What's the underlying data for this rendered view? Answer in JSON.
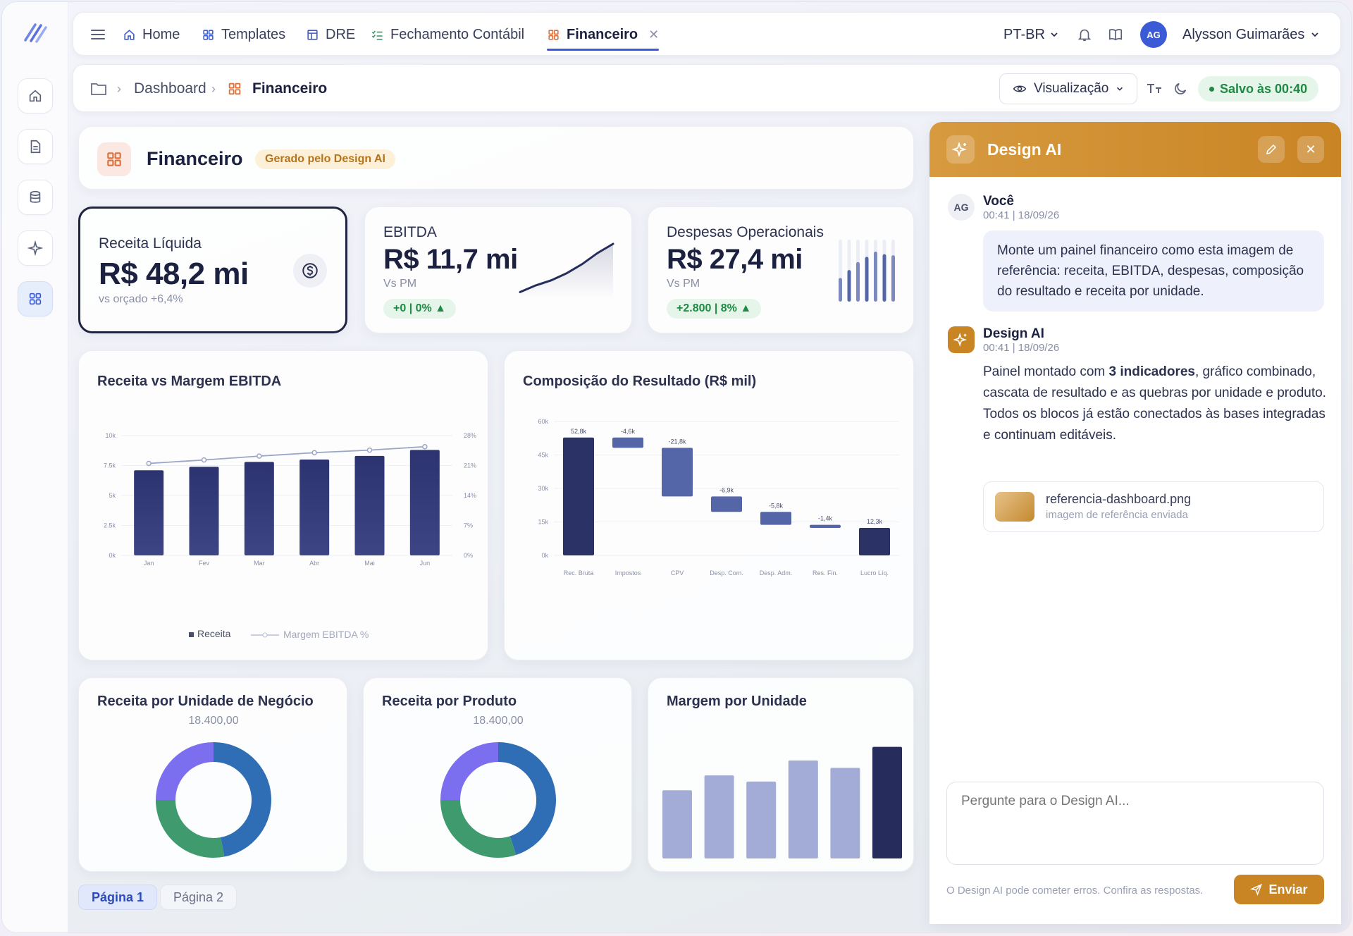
{
  "nav": {
    "tabs": [
      {
        "label": "Home",
        "icon": "home-icon"
      },
      {
        "label": "Templates",
        "icon": "grid-icon"
      },
      {
        "label": "DRE",
        "icon": "table-icon"
      },
      {
        "label": "Fechamento Contábil",
        "icon": "checklist-icon"
      },
      {
        "label": "Financeiro",
        "icon": "grid-icon",
        "active": true
      }
    ],
    "language": "PT-BR",
    "user_initials": "AG",
    "user_name": "Alysson Guimarães"
  },
  "breadcrumb": {
    "items": [
      "Dashboard",
      "Financeiro"
    ],
    "view_label": "Visualização",
    "saved_label": "Salvo às 00:40"
  },
  "page": {
    "title": "Financeiro",
    "badge": "Gerado pelo Design AI"
  },
  "kpis": [
    {
      "title": "Receita Líquida",
      "value": "R$ 48,2 mi",
      "sub": "vs orçado +6,4%"
    },
    {
      "title": "EBITDA",
      "value": "R$ 11,7 mi",
      "sub": "Vs PM",
      "chip": "+0 | 0% ▲",
      "spark": [
        0.05,
        0.18,
        0.28,
        0.42,
        0.6,
        0.82,
        1.0
      ]
    },
    {
      "title": "Despesas Operacionais",
      "value": "R$ 27,4 mi",
      "sub": "Vs PM",
      "chip": "+2.800 | 8% ▲",
      "bars": [
        0.45,
        0.6,
        0.75,
        0.85,
        0.95,
        0.9,
        0.88
      ]
    }
  ],
  "chart_data": [
    {
      "type": "bar",
      "title": "Receita vs Margem EBITDA",
      "categories": [
        "Jan",
        "Fev",
        "Mar",
        "Abr",
        "Mai",
        "Jun"
      ],
      "y_ticks": [
        "0k",
        "2.5k",
        "5k",
        "7.5k",
        "10k"
      ],
      "y2_ticks": [
        "0%",
        "7%",
        "14%",
        "21%",
        "28%"
      ],
      "ylim": [
        0,
        10000
      ],
      "y2lim": [
        0,
        28
      ],
      "series": [
        {
          "name": "Receita",
          "type": "bar",
          "values": [
            7100,
            7400,
            7800,
            8000,
            8300,
            8800
          ]
        },
        {
          "name": "Margem EBITDA %",
          "type": "line",
          "values": [
            21.5,
            22.3,
            23.2,
            24.0,
            24.6,
            25.4
          ]
        }
      ],
      "legend": "bottom"
    },
    {
      "type": "waterfall",
      "title": "Composição do Resultado (R$ mil)",
      "categories": [
        "Rec. Bruta",
        "Impostos",
        "CPV",
        "Desp. Com.",
        "Desp. Adm.",
        "Res. Fin.",
        "Lucro Líq."
      ],
      "labels": [
        "52,8k",
        "-4,6k",
        "-21,8k",
        "-6,9k",
        "-5,8k",
        "-1,4k",
        "12,3k"
      ],
      "values": [
        52.8,
        -4.6,
        -21.8,
        -6.9,
        -5.8,
        -1.4,
        12.3
      ],
      "y_ticks": [
        "0k",
        "15k",
        "30k",
        "45k",
        "60k"
      ],
      "ylim": [
        0,
        60
      ]
    },
    {
      "type": "pie",
      "title": "Receita por Unidade de Negócio",
      "total": "18.400,00",
      "slices": [
        {
          "value": 47,
          "color": "#2f6db5"
        },
        {
          "value": 28,
          "color": "#3f9b6e"
        },
        {
          "value": 25,
          "color": "#7b6ff0"
        }
      ]
    },
    {
      "type": "pie",
      "title": "Receita por Produto",
      "total": "18.400,00",
      "slices": [
        {
          "value": 45,
          "color": "#2f6db5"
        },
        {
          "value": 30,
          "color": "#3f9b6e"
        },
        {
          "value": 25,
          "color": "#7b6ff0"
        }
      ]
    },
    {
      "type": "bar",
      "title": "Margem por Unidade",
      "values": [
        0.55,
        0.67,
        0.62,
        0.79,
        0.73,
        0.9
      ]
    }
  ],
  "pages": [
    "Página 1",
    "Página 2"
  ],
  "ai": {
    "title": "Design AI",
    "user_msg": {
      "initials": "AG",
      "name": "Você",
      "time": "00:41 | 18/09/26",
      "text": "Monte um painel financeiro como esta imagem de referência: receita, EBITDA, despesas, composição do resultado e receita por unidade."
    },
    "ai_msg": {
      "name": "Design AI",
      "time": "00:41 | 18/09/26",
      "text_before": "Painel montado com ",
      "text_bold": "3 indicadores",
      "text_after": ", gráfico combinado, cascata de resultado e as quebras por unidade e produto. Todos os blocos já estão conectados às bases integradas e continuam editáveis."
    },
    "attachment": {
      "name": "referencia-dashboard.png",
      "desc": "imagem de referência enviada"
    },
    "placeholder": "Pergunte para o Design AI...",
    "disclaimer": "O Design AI pode cometer erros. Confira as respostas.",
    "send_label": "Enviar"
  }
}
